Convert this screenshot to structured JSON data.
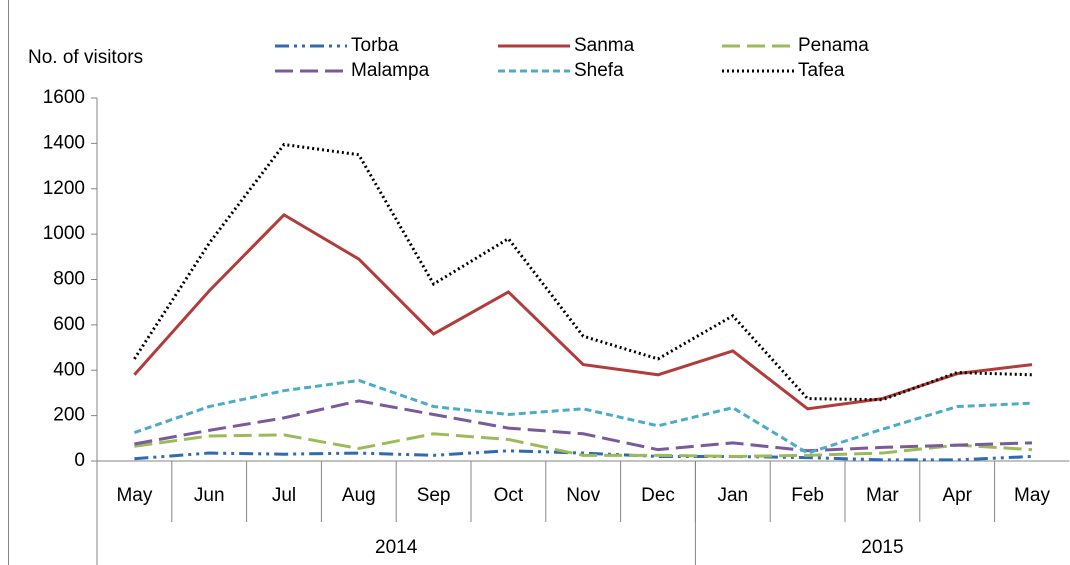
{
  "chart_data": {
    "type": "line",
    "y_label": "No. of visitors",
    "category_groups": [
      {
        "label": "2014",
        "categories": [
          "May",
          "Jun",
          "Jul",
          "Aug",
          "Sep",
          "Oct",
          "Nov",
          "Dec"
        ]
      },
      {
        "label": "2015",
        "categories": [
          "Jan",
          "Feb",
          "Mar",
          "Apr",
          "May"
        ]
      }
    ],
    "ylim": [
      0,
      1600
    ],
    "yticks": [
      0,
      200,
      400,
      600,
      800,
      1000,
      1200,
      1400,
      1600
    ],
    "series": [
      {
        "name": "Torba",
        "color": "#2e6bb0",
        "dash": "14 5 3 5 3 5",
        "values": [
          10,
          35,
          30,
          35,
          25,
          45,
          35,
          20,
          20,
          15,
          5,
          5,
          20
        ]
      },
      {
        "name": "Sanma",
        "color": "#b23c3a",
        "dash": "none",
        "values": [
          380,
          750,
          1085,
          890,
          560,
          745,
          425,
          380,
          485,
          230,
          275,
          385,
          425
        ]
      },
      {
        "name": "Penama",
        "color": "#9bbb59",
        "dash": "18 7",
        "values": [
          65,
          110,
          115,
          55,
          120,
          95,
          25,
          25,
          20,
          25,
          35,
          70,
          50
        ]
      },
      {
        "name": "Malampa",
        "color": "#7a5a9a",
        "dash": "18 7",
        "values": [
          75,
          135,
          190,
          265,
          205,
          145,
          120,
          50,
          80,
          45,
          60,
          70,
          80
        ]
      },
      {
        "name": "Shefa",
        "color": "#4bacc6",
        "dash": "7 4",
        "values": [
          125,
          240,
          310,
          355,
          240,
          205,
          230,
          155,
          235,
          35,
          140,
          240,
          255
        ]
      },
      {
        "name": "Tafea",
        "color": "#000000",
        "dash": "2 3",
        "values": [
          450,
          960,
          1395,
          1350,
          780,
          980,
          550,
          450,
          640,
          275,
          270,
          390,
          380
        ]
      }
    ]
  }
}
